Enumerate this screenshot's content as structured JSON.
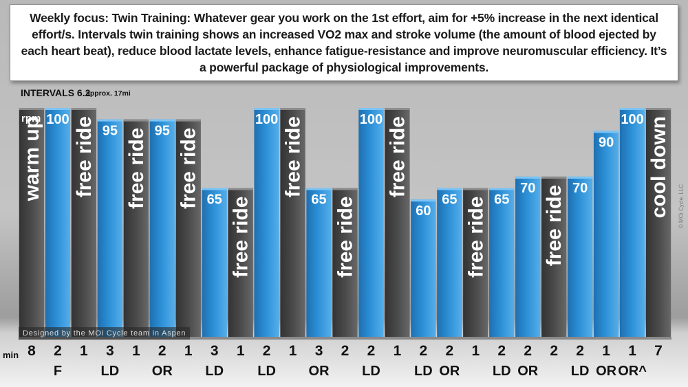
{
  "header": {
    "focus_text": "Weekly focus:  Twin Training: Whatever gear you work on the 1st effort, aim for +5% increase in the next identical effort/s. Intervals twin training shows an increased VO2 max and stroke volume (the amount of blood ejected by each heart beat), reduce blood lactate levels, enhance fatigue-resistance and improve neuromuscular efficiency. It’s a powerful package of physiological improvements."
  },
  "credit": "Designed by the MOi Cycle team in Aspen",
  "copyright": "© MOi Cycle, LLC",
  "min_label": "min",
  "colors": {
    "effort": "#2b8fd6",
    "free": "#4a4a4a",
    "background": "#bdbdbd"
  },
  "chart_data": {
    "type": "bar",
    "title": "INTERVALS 6.2",
    "subtitle": "approx. 17mi",
    "unit_label": "rpm",
    "bars": [
      {
        "kind": "free",
        "label": "warm up",
        "height": 100,
        "minutes": "8",
        "code": ""
      },
      {
        "kind": "effort",
        "label": "100",
        "height": 100,
        "minutes": "2",
        "code": "F"
      },
      {
        "kind": "free",
        "label": "free ride",
        "height": 100,
        "minutes": "1",
        "code": ""
      },
      {
        "kind": "effort",
        "label": "95",
        "height": 95,
        "minutes": "3",
        "code": "LD"
      },
      {
        "kind": "free",
        "label": "free ride",
        "height": 95,
        "minutes": "1",
        "code": ""
      },
      {
        "kind": "effort",
        "label": "95",
        "height": 95,
        "minutes": "2",
        "code": "OR"
      },
      {
        "kind": "free",
        "label": "free ride",
        "height": 95,
        "minutes": "1",
        "code": ""
      },
      {
        "kind": "effort",
        "label": "65",
        "height": 65,
        "minutes": "3",
        "code": "LD"
      },
      {
        "kind": "free",
        "label": "free ride",
        "height": 65,
        "minutes": "1",
        "code": ""
      },
      {
        "kind": "effort",
        "label": "100",
        "height": 100,
        "minutes": "2",
        "code": "LD"
      },
      {
        "kind": "free",
        "label": "free ride",
        "height": 100,
        "minutes": "1",
        "code": ""
      },
      {
        "kind": "effort",
        "label": "65",
        "height": 65,
        "minutes": "3",
        "code": "OR"
      },
      {
        "kind": "free",
        "label": "free ride",
        "height": 65,
        "minutes": "2",
        "code": ""
      },
      {
        "kind": "effort",
        "label": "100",
        "height": 100,
        "minutes": "2",
        "code": "LD"
      },
      {
        "kind": "free",
        "label": "free ride",
        "height": 100,
        "minutes": "1",
        "code": ""
      },
      {
        "kind": "effort",
        "label": "60",
        "height": 60,
        "minutes": "2",
        "code": "LD"
      },
      {
        "kind": "effort",
        "label": "65",
        "height": 65,
        "minutes": "2",
        "code": "OR"
      },
      {
        "kind": "free",
        "label": "free ride",
        "height": 65,
        "minutes": "1",
        "code": ""
      },
      {
        "kind": "effort",
        "label": "65",
        "height": 65,
        "minutes": "2",
        "code": "LD"
      },
      {
        "kind": "effort",
        "label": "70",
        "height": 70,
        "minutes": "2",
        "code": "OR"
      },
      {
        "kind": "free",
        "label": "free ride",
        "height": 70,
        "minutes": "2",
        "code": ""
      },
      {
        "kind": "effort",
        "label": "70",
        "height": 70,
        "minutes": "2",
        "code": "LD"
      },
      {
        "kind": "effort",
        "label": "90",
        "height": 90,
        "minutes": "1",
        "code": "OR"
      },
      {
        "kind": "effort",
        "label": "100",
        "height": 100,
        "minutes": "1",
        "code": "OR^"
      },
      {
        "kind": "free",
        "label": "cool down",
        "height": 100,
        "minutes": "7",
        "code": ""
      }
    ]
  }
}
